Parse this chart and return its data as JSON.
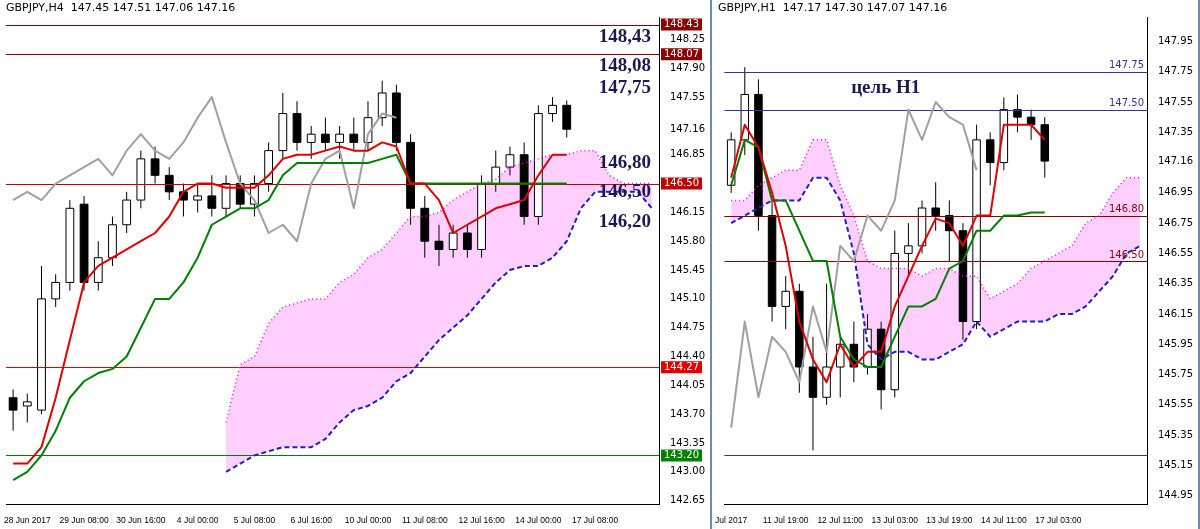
{
  "chart_data": [
    {
      "type": "candlestick",
      "title": "GBPJPY,H4  147.45 147.51 147.06 147.16",
      "categories": [
        null,
        "28 Jun 2017",
        null,
        null,
        null,
        "29 Jun 08:00",
        null,
        null,
        null,
        "30 Jun 16:00",
        null,
        null,
        null,
        "4 Jul 00:00",
        null,
        null,
        null,
        "5 Jul 08:00",
        null,
        null,
        null,
        "6 Jul 16:00",
        null,
        null,
        null,
        "10 Jul 00:00",
        null,
        null,
        null,
        "11 Jul 08:00",
        null,
        null,
        null,
        "12 Jul 16:00",
        null,
        null,
        null,
        "14 Jul 00:00",
        null,
        null,
        null,
        "17 Jul 08:00",
        null,
        null,
        null,
        null
      ],
      "ohlc": [
        [
          143.9,
          144.0,
          143.5,
          143.75
        ],
        [
          143.8,
          143.95,
          143.6,
          143.85
        ],
        [
          143.75,
          145.5,
          143.7,
          145.1
        ],
        [
          145.1,
          145.4,
          145.0,
          145.3
        ],
        [
          145.3,
          146.3,
          145.2,
          146.2
        ],
        [
          146.25,
          146.35,
          145.2,
          145.3
        ],
        [
          145.3,
          145.8,
          145.2,
          145.6
        ],
        [
          145.6,
          146.1,
          145.5,
          146.0
        ],
        [
          146.0,
          146.4,
          145.9,
          146.3
        ],
        [
          146.3,
          146.9,
          146.2,
          146.8
        ],
        [
          146.8,
          146.95,
          146.5,
          146.6
        ],
        [
          146.6,
          146.7,
          146.3,
          146.4
        ],
        [
          146.4,
          146.5,
          146.1,
          146.3
        ],
        [
          146.3,
          146.5,
          146.15,
          146.35
        ],
        [
          146.35,
          146.6,
          146.1,
          146.2
        ],
        [
          146.2,
          146.6,
          146.1,
          146.5
        ],
        [
          146.5,
          146.6,
          146.2,
          146.25
        ],
        [
          146.25,
          146.6,
          146.1,
          146.5
        ],
        [
          146.5,
          147.0,
          146.4,
          146.9
        ],
        [
          146.9,
          147.6,
          146.8,
          147.35
        ],
        [
          147.35,
          147.5,
          146.9,
          147.0
        ],
        [
          147.0,
          147.2,
          146.8,
          147.1
        ],
        [
          147.1,
          147.3,
          146.9,
          147.0
        ],
        [
          147.0,
          147.2,
          146.8,
          147.1
        ],
        [
          147.1,
          147.3,
          146.9,
          147.0
        ],
        [
          147.0,
          147.5,
          146.9,
          147.3
        ],
        [
          147.3,
          147.75,
          147.2,
          147.6
        ],
        [
          147.6,
          147.7,
          146.9,
          147.0
        ],
        [
          147.0,
          147.1,
          146.0,
          146.2
        ],
        [
          146.2,
          146.35,
          145.6,
          145.8
        ],
        [
          145.8,
          146.0,
          145.5,
          145.7
        ],
        [
          145.7,
          146.0,
          145.6,
          145.9
        ],
        [
          145.9,
          146.0,
          145.6,
          145.7
        ],
        [
          145.7,
          146.6,
          145.6,
          146.5
        ],
        [
          146.5,
          146.9,
          146.4,
          146.7
        ],
        [
          146.7,
          146.95,
          146.6,
          146.85
        ],
        [
          146.85,
          147.0,
          146.0,
          146.1
        ],
        [
          146.1,
          147.45,
          146.0,
          147.35
        ],
        [
          147.35,
          147.55,
          147.25,
          147.45
        ],
        [
          147.45,
          147.51,
          147.06,
          147.16
        ],
        null,
        null,
        null,
        null,
        null,
        null
      ],
      "series": [
        {
          "type": "line",
          "color": "#2020c0",
          "line_style": "dashed",
          "values": [
            null,
            null,
            null,
            null,
            null,
            null,
            null,
            null,
            null,
            null,
            null,
            null,
            null,
            null,
            null,
            143.0,
            143.1,
            143.2,
            143.25,
            143.3,
            143.3,
            143.3,
            143.4,
            143.6,
            143.75,
            143.8,
            143.9,
            144.1,
            144.2,
            144.4,
            144.6,
            144.75,
            144.9,
            145.1,
            145.3,
            145.45,
            145.5,
            145.5,
            145.6,
            145.8,
            146.2,
            146.4,
            146.4,
            146.4,
            146.4,
            146.2
          ]
        },
        {
          "type": "area",
          "color": "#ff00ff",
          "line_style": "dotted",
          "values": [
            null,
            null,
            null,
            null,
            null,
            null,
            null,
            null,
            null,
            null,
            null,
            null,
            null,
            null,
            null,
            143.6,
            144.3,
            144.4,
            144.8,
            145.0,
            145.05,
            145.1,
            145.1,
            145.3,
            145.4,
            145.6,
            145.7,
            145.9,
            146.1,
            146.1,
            146.15,
            146.3,
            146.4,
            146.5,
            146.55,
            146.7,
            146.75,
            146.8,
            146.85,
            146.85,
            146.9,
            146.9,
            146.6,
            146.5,
            146.5,
            146.5
          ]
        },
        {
          "type": "line",
          "color": "#a0a0a0",
          "values": [
            146.3,
            146.4,
            146.3,
            146.5,
            146.6,
            146.7,
            146.8,
            146.6,
            146.9,
            147.1,
            146.9,
            146.8,
            147.0,
            147.3,
            147.55,
            147.0,
            146.5,
            146.3,
            145.9,
            146.0,
            145.8,
            146.5,
            146.8,
            146.9,
            146.2,
            147.1,
            147.35,
            147.3,
            null,
            null,
            null,
            null,
            null,
            null,
            null,
            null,
            null,
            null,
            null,
            null,
            null,
            null,
            null,
            null,
            null,
            null
          ]
        },
        {
          "type": "line",
          "color": "#008000",
          "values": [
            142.9,
            143.0,
            143.2,
            143.5,
            143.9,
            144.1,
            144.2,
            144.25,
            144.4,
            144.75,
            145.1,
            145.1,
            145.3,
            145.6,
            146.0,
            146.1,
            146.2,
            146.2,
            146.3,
            146.6,
            146.75,
            146.75,
            146.75,
            146.75,
            146.75,
            146.75,
            146.8,
            146.85,
            146.5,
            146.5,
            146.5,
            146.5,
            146.5,
            146.5,
            146.5,
            146.5,
            146.5,
            146.5,
            146.5,
            146.5,
            null,
            null,
            null,
            null,
            null,
            null
          ]
        },
        {
          "type": "line",
          "color": "#e00000",
          "values": [
            143.1,
            143.1,
            143.3,
            143.9,
            144.6,
            145.3,
            145.5,
            145.6,
            145.7,
            145.8,
            145.9,
            146.1,
            146.4,
            146.5,
            146.5,
            146.45,
            146.45,
            146.45,
            146.6,
            146.8,
            146.85,
            146.85,
            146.9,
            146.95,
            146.9,
            146.9,
            147.0,
            146.95,
            146.5,
            146.5,
            146.3,
            145.9,
            146.0,
            146.1,
            146.2,
            146.25,
            146.3,
            146.6,
            146.85,
            146.85,
            null,
            null,
            null,
            null,
            null,
            null
          ]
        }
      ],
      "ylim": [
        142.6,
        148.52
      ],
      "yticks": [
        {
          "value": 148.25,
          "label": "148.25"
        },
        {
          "value": 147.9,
          "label": "147.90"
        },
        {
          "value": 147.55,
          "label": "147.55"
        },
        {
          "value": 147.16,
          "label": "147.16"
        },
        {
          "value": 146.85,
          "label": "146.85"
        },
        {
          "value": 146.15,
          "label": "146.15"
        },
        {
          "value": 145.8,
          "label": "145.80"
        },
        {
          "value": 145.45,
          "label": "145.45"
        },
        {
          "value": 145.1,
          "label": "145.10"
        },
        {
          "value": 144.75,
          "label": "144.75"
        },
        {
          "value": 144.4,
          "label": "144.40"
        },
        {
          "value": 144.05,
          "label": "144.05"
        },
        {
          "value": 143.7,
          "label": "143.70"
        },
        {
          "value": 143.35,
          "label": "143.35"
        },
        {
          "value": 143.0,
          "label": "143.00"
        },
        {
          "value": 142.65,
          "label": "142.65"
        }
      ],
      "ref_lines": [
        {
          "axis": "y",
          "value": 148.43,
          "label": "148.43",
          "color": "#8b0000"
        },
        {
          "axis": "y",
          "value": 148.07,
          "label": "148.07",
          "color": "#8b0000"
        },
        {
          "axis": "y",
          "value": 146.5,
          "label": "146.50",
          "color": "#c00000"
        },
        {
          "axis": "y",
          "value": 144.27,
          "label": "144.27",
          "color": "#e00000"
        },
        {
          "axis": "y",
          "value": 143.2,
          "label": "143.20",
          "color": "#008000"
        }
      ],
      "annotations": [
        {
          "text": "148,43",
          "y": 148.43
        },
        {
          "text": "148,08",
          "y": 148.08
        },
        "147,75",
        "146,80",
        "146,50",
        "146,20"
      ]
    },
    {
      "type": "candlestick",
      "title": "GBPJPY,H1  147.17 147.30 147.07 147.16",
      "categories": [
        "Jul 2017",
        null,
        null,
        null,
        "11 Jul 19:00",
        null,
        null,
        null,
        "12 Jul 11:00",
        null,
        null,
        null,
        "13 Jul 03:00",
        null,
        null,
        null,
        "13 Jul 19:00",
        null,
        null,
        null,
        "14 Jul 11:00",
        null,
        null,
        null,
        "17 Jul 03:00",
        null,
        null,
        null,
        null,
        null,
        null
      ],
      "ohlc": [
        [
          147.0,
          147.35,
          146.95,
          147.3
        ],
        [
          147.3,
          147.78,
          147.2,
          147.6
        ],
        [
          147.6,
          147.7,
          146.7,
          146.8
        ],
        [
          146.8,
          146.9,
          146.1,
          146.2
        ],
        [
          146.2,
          146.4,
          146.05,
          146.3
        ],
        [
          146.3,
          146.35,
          145.63,
          145.8
        ],
        [
          145.8,
          146.0,
          145.25,
          145.6
        ],
        [
          145.6,
          146.35,
          145.55,
          145.8
        ],
        [
          145.8,
          146.0,
          145.6,
          145.95
        ],
        [
          145.95,
          146.1,
          145.7,
          145.8
        ],
        [
          145.8,
          146.15,
          145.75,
          146.05
        ],
        [
          146.05,
          146.1,
          145.52,
          145.65
        ],
        [
          145.65,
          146.7,
          145.6,
          146.55
        ],
        [
          146.55,
          146.75,
          146.4,
          146.6
        ],
        [
          146.6,
          146.9,
          146.55,
          146.85
        ],
        [
          146.85,
          147.02,
          146.7,
          146.8
        ],
        [
          146.8,
          146.9,
          146.5,
          146.7
        ],
        [
          146.7,
          146.75,
          145.98,
          146.1
        ],
        [
          146.1,
          147.4,
          146.05,
          147.3
        ],
        [
          147.3,
          147.35,
          147.0,
          147.15
        ],
        [
          147.15,
          147.58,
          147.1,
          147.5
        ],
        [
          147.5,
          147.6,
          147.35,
          147.45
        ],
        [
          147.45,
          147.5,
          147.3,
          147.4
        ],
        [
          147.4,
          147.45,
          147.05,
          147.16
        ],
        null,
        null,
        null,
        null,
        null,
        null,
        null
      ],
      "series": [
        {
          "type": "line",
          "color": "#2020c0",
          "line_style": "dashed",
          "values": [
            146.75,
            146.8,
            146.85,
            146.9,
            146.9,
            146.9,
            147.05,
            147.05,
            146.9,
            146.55,
            145.95,
            145.85,
            145.9,
            145.9,
            145.85,
            145.85,
            145.9,
            145.95,
            146.1,
            146.0,
            146.05,
            146.1,
            146.1,
            146.1,
            146.15,
            146.15,
            146.2,
            146.3,
            146.4,
            146.55,
            146.6
          ]
        },
        {
          "type": "area",
          "color": "#ff00ff",
          "line_style": "dotted",
          "values": [
            146.9,
            146.9,
            147.0,
            147.05,
            147.1,
            147.1,
            147.3,
            147.3,
            147.0,
            146.8,
            146.5,
            146.45,
            146.45,
            146.45,
            146.4,
            146.45,
            146.45,
            146.4,
            146.4,
            146.25,
            146.3,
            146.35,
            146.45,
            146.5,
            146.55,
            146.6,
            146.75,
            146.8,
            146.95,
            147.05,
            147.05
          ]
        },
        {
          "type": "line",
          "color": "#a0a0a0",
          "values": [
            145.4,
            146.1,
            145.6,
            146.0,
            145.9,
            145.7,
            146.2,
            145.9,
            146.6,
            146.5,
            146.8,
            146.7,
            146.9,
            147.5,
            147.3,
            147.55,
            147.45,
            147.4,
            147.1,
            null,
            null,
            null,
            null,
            null,
            null,
            null,
            null,
            null,
            null,
            null,
            null
          ]
        },
        {
          "type": "line",
          "color": "#008000",
          "values": [
            147.0,
            147.3,
            147.25,
            146.9,
            146.9,
            146.7,
            146.5,
            146.5,
            146.0,
            145.85,
            145.8,
            145.8,
            146.0,
            146.2,
            146.2,
            146.25,
            146.45,
            146.5,
            146.7,
            146.7,
            146.8,
            146.8,
            146.82,
            146.82,
            null,
            null,
            null,
            null,
            null,
            null,
            null
          ]
        },
        {
          "type": "line",
          "color": "#e00000",
          "values": [
            147.05,
            147.4,
            147.25,
            146.95,
            146.6,
            146.1,
            145.85,
            145.7,
            145.95,
            145.8,
            145.9,
            145.9,
            146.2,
            146.4,
            146.6,
            146.78,
            146.75,
            146.6,
            146.8,
            146.8,
            147.4,
            147.4,
            147.4,
            147.3,
            null,
            null,
            null,
            null,
            null,
            null,
            null
          ]
        }
      ],
      "ylim": [
        144.89,
        148.11
      ],
      "yticks": [
        {
          "value": 147.95,
          "label": "147.95"
        },
        {
          "value": 147.75,
          "label": "147.75"
        },
        {
          "value": 147.55,
          "label": "147.55"
        },
        {
          "value": 147.35,
          "label": "147.35"
        },
        {
          "value": 147.16,
          "label": "147.16"
        },
        {
          "value": 146.95,
          "label": "146.95"
        },
        {
          "value": 146.75,
          "label": "146.75"
        },
        {
          "value": 146.55,
          "label": "146.55"
        },
        {
          "value": 146.35,
          "label": "146.35"
        },
        {
          "value": 146.15,
          "label": "146.15"
        },
        {
          "value": 145.95,
          "label": "145.95"
        },
        {
          "value": 145.75,
          "label": "145.75"
        },
        {
          "value": 145.55,
          "label": "145.55"
        },
        {
          "value": 145.35,
          "label": "145.35"
        },
        {
          "value": 145.15,
          "label": "145.15"
        },
        {
          "value": 144.95,
          "label": "144.95"
        }
      ],
      "ref_lines": [
        {
          "axis": "y",
          "value": 147.75,
          "label": "147.75",
          "color": "#333399"
        },
        {
          "axis": "y",
          "value": 147.5,
          "label": "147.50",
          "color": "#333399"
        },
        {
          "axis": "y",
          "value": 146.8,
          "label": "146.80",
          "color": "#8b0000"
        },
        {
          "axis": "y",
          "value": 146.5,
          "label": "146.50",
          "color": "#8b0000"
        },
        {
          "axis": "y",
          "value": 145.22,
          "label": null,
          "color": "#333399"
        }
      ],
      "annotations": [
        "цель H1"
      ]
    }
  ]
}
